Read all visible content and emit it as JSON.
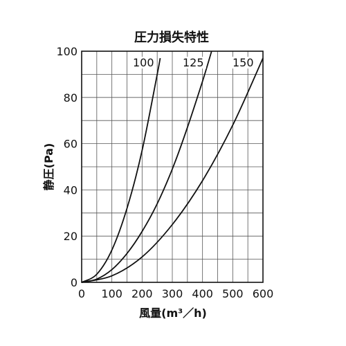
{
  "chart_data": {
    "type": "line",
    "title": "圧力損失特性",
    "xlabel": "風量(m³／h)",
    "ylabel": "静圧(Pa)",
    "xlim": [
      0,
      600
    ],
    "ylim": [
      0,
      100
    ],
    "x_ticks": [
      "0",
      "100",
      "200",
      "300",
      "400",
      "500",
      "600"
    ],
    "y_ticks": [
      "0",
      "20",
      "40",
      "60",
      "80",
      "100"
    ],
    "x_tick_values": [
      0,
      100,
      200,
      300,
      400,
      500,
      600
    ],
    "y_tick_values": [
      0,
      20,
      40,
      60,
      80,
      100
    ],
    "grid_x_step": 50,
    "grid_y_step": 10,
    "grid": true,
    "series": [
      {
        "name": "100",
        "label": "100",
        "x": [
          0,
          50,
          100,
          150,
          200,
          250,
          260
        ],
        "y": [
          0,
          3.5,
          14,
          32,
          57,
          90,
          97
        ]
      },
      {
        "name": "125",
        "label": "125",
        "x": [
          0,
          50,
          100,
          150,
          200,
          250,
          300,
          350,
          400,
          430
        ],
        "y": [
          0,
          1.4,
          5.5,
          12.5,
          22,
          34,
          49,
          67,
          87,
          100
        ]
      },
      {
        "name": "150",
        "label": "150",
        "x": [
          0,
          100,
          200,
          300,
          400,
          500,
          600
        ],
        "y": [
          0,
          2.8,
          11,
          25,
          44,
          68,
          97
        ]
      }
    ]
  }
}
